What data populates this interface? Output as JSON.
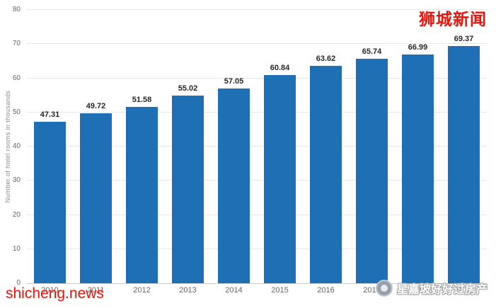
{
  "chart_data": {
    "type": "bar",
    "categories": [
      "2010",
      "2011",
      "2012",
      "2013",
      "2014",
      "2015",
      "2016",
      "2017",
      "2018",
      "2019"
    ],
    "values": [
      47.31,
      49.72,
      51.58,
      55.02,
      57.05,
      60.84,
      63.62,
      65.74,
      66.99,
      69.37
    ],
    "value_labels": [
      "47.31",
      "49.72",
      "51.58",
      "55.02",
      "57.05",
      "60.84",
      "63.62",
      "65.74",
      "66.99",
      "69.37"
    ],
    "title": "",
    "xlabel": "",
    "ylabel": "Number of hotel rooms in thousands",
    "ylim": [
      0,
      80
    ],
    "yticks": [
      0,
      10,
      20,
      30,
      40,
      50,
      60,
      70,
      80
    ],
    "bar_color": "#1f6fb5",
    "grid": true,
    "legend": "none"
  },
  "overlays": {
    "top_right_watermark": "狮城新闻",
    "bottom_left_watermark": "shicheng.news",
    "bottom_right_watermark": "星嘉坡好好过房产",
    "watermark_red": "#e8130b"
  }
}
